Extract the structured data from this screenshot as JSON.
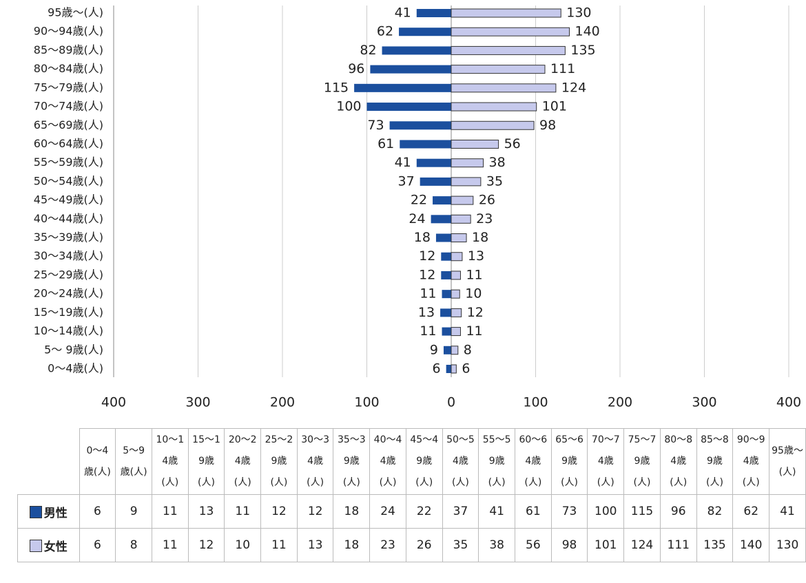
{
  "chart_data": {
    "type": "pyramid",
    "categories": [
      "0～4歳(人)",
      "5～ 9歳(人)",
      "10～14歳(人)",
      "15～19歳(人)",
      "20～24歳(人)",
      "25～29歳(人)",
      "30～34歳(人)",
      "35～39歳(人)",
      "40～44歳(人)",
      "45～49歳(人)",
      "50～54歳(人)",
      "55～59歳(人)",
      "60～64歳(人)",
      "65～69歳(人)",
      "70～74歳(人)",
      "75～79歳(人)",
      "80～84歳(人)",
      "85～89歳(人)",
      "90～94歳(人)",
      "95歳～(人)"
    ],
    "series": [
      {
        "name": "男性",
        "color": "#1b4f9e",
        "values": [
          6,
          9,
          11,
          13,
          11,
          12,
          12,
          18,
          24,
          22,
          37,
          41,
          61,
          73,
          100,
          115,
          96,
          82,
          62,
          41
        ]
      },
      {
        "name": "女性",
        "color": "#c6c9ec",
        "values": [
          6,
          8,
          11,
          12,
          10,
          11,
          13,
          18,
          23,
          26,
          35,
          38,
          56,
          98,
          101,
          124,
          111,
          135,
          140,
          130
        ]
      }
    ],
    "xlim": [
      0,
      400
    ],
    "xticks": [
      0,
      100,
      200,
      300,
      400
    ],
    "grid": true
  },
  "table": {
    "columns": [
      "0～4歳(人)",
      "5～9歳(人)",
      "10～14歳(人)",
      "15～19歳(人)",
      "20～24歳(人)",
      "25～29歳(人)",
      "30～34歳(人)",
      "35～39歳(人)",
      "40～44歳(人)",
      "45～49歳(人)",
      "50～54歳(人)",
      "55～59歳(人)",
      "60～64歳(人)",
      "65～69歳(人)",
      "70～74歳(人)",
      "75～79歳(人)",
      "80～84歳(人)",
      "85～89歳(人)",
      "90～94歳(人)",
      "95歳～(人)"
    ]
  }
}
